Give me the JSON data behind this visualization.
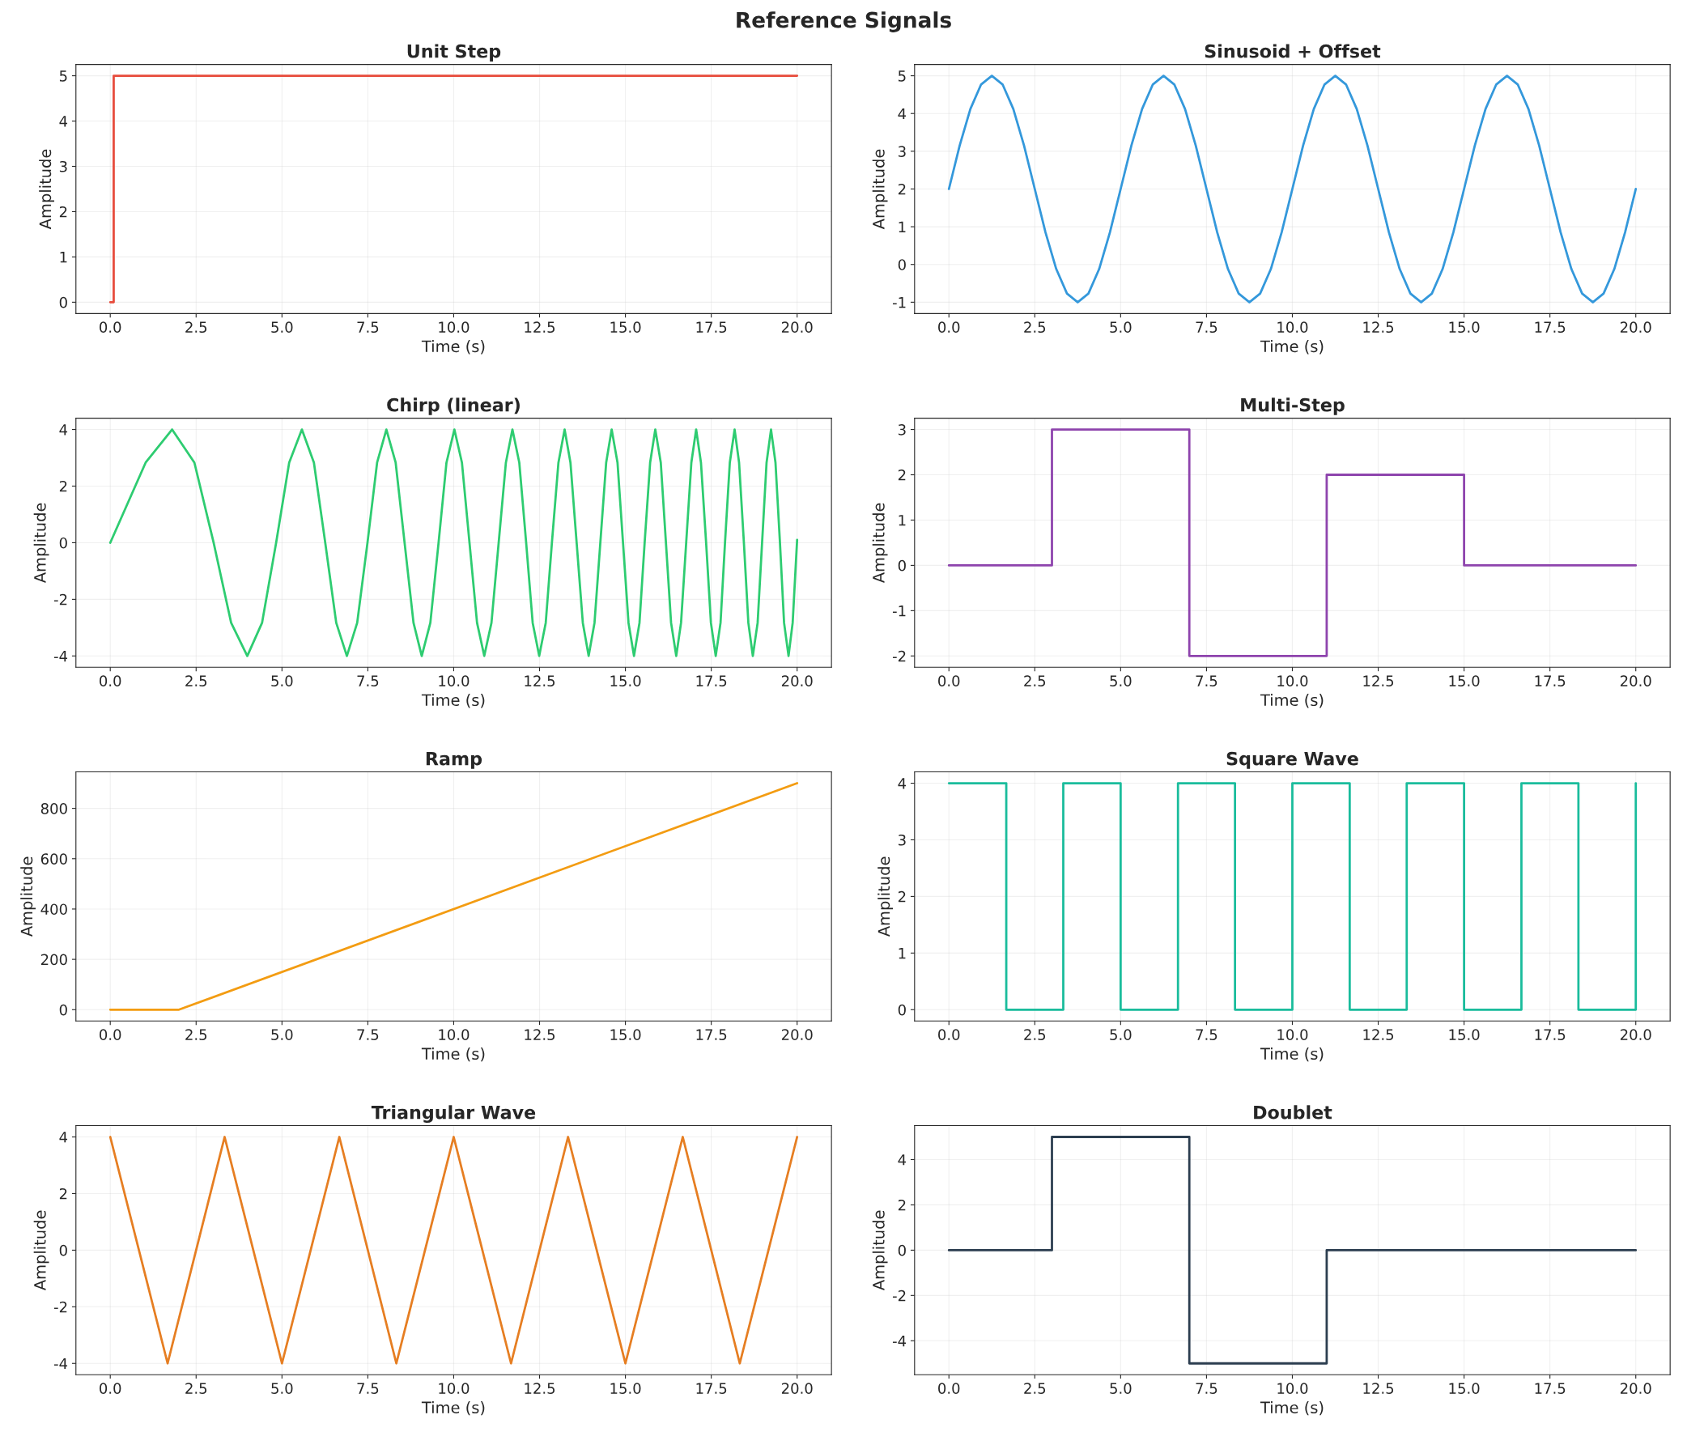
{
  "chart_data": [
    {
      "type": "step",
      "title": "Unit Step",
      "xlabel": "Time (s)",
      "ylabel": "Amplitude",
      "annotations": [
        "Reference Signals"
      ],
      "color": "#e74c3c",
      "x": [
        0,
        0.1,
        20
      ],
      "values": [
        0,
        5,
        5
      ],
      "xlim": [
        -1,
        21
      ],
      "ylim": [
        -0.25,
        5.25
      ],
      "xticks": [
        {
          "value": 0,
          "label": "0.0"
        },
        {
          "value": 2.5,
          "label": "2.5"
        },
        {
          "value": 5,
          "label": "5.0"
        },
        {
          "value": 7.5,
          "label": "7.5"
        },
        {
          "value": 10,
          "label": "10.0"
        },
        {
          "value": 12.5,
          "label": "12.5"
        },
        {
          "value": 15,
          "label": "15.0"
        },
        {
          "value": 17.5,
          "label": "17.5"
        },
        {
          "value": 20,
          "label": "20.0"
        }
      ],
      "yticks": [
        0,
        1,
        2,
        3,
        4,
        5
      ],
      "grid": true
    },
    {
      "type": "line",
      "title": "Sinusoid + Offset",
      "xlabel": "Time (s)",
      "ylabel": "Amplitude",
      "color": "#3498db",
      "x": [
        0,
        0.3125,
        0.625,
        0.9375,
        1.25,
        1.5625,
        1.875,
        2.1875,
        2.5,
        2.8125,
        3.125,
        3.4375,
        3.75,
        4.0625,
        4.375,
        4.6875,
        5,
        5.3125,
        5.625,
        5.9375,
        6.25,
        6.5625,
        6.875,
        7.1875,
        7.5,
        7.8125,
        8.125,
        8.4375,
        8.75,
        9.0625,
        9.375,
        9.6875,
        10,
        10.3125,
        10.625,
        10.9375,
        11.25,
        11.5625,
        11.875,
        12.1875,
        12.5,
        12.8125,
        13.125,
        13.4375,
        13.75,
        14.0625,
        14.375,
        14.6875,
        15,
        15.3125,
        15.625,
        15.9375,
        16.25,
        16.5625,
        16.875,
        17.1875,
        17.5,
        17.8125,
        18.125,
        18.4375,
        18.75,
        19.0625,
        19.375,
        19.6875,
        20
      ],
      "values": [
        2,
        3.15,
        4.12,
        4.77,
        5,
        4.77,
        4.12,
        3.15,
        2,
        0.85,
        -0.12,
        -0.77,
        -1,
        -0.77,
        -0.12,
        0.85,
        2,
        3.15,
        4.12,
        4.77,
        5,
        4.77,
        4.12,
        3.15,
        2,
        0.85,
        -0.12,
        -0.77,
        -1,
        -0.77,
        -0.12,
        0.85,
        2,
        3.15,
        4.12,
        4.77,
        5,
        4.77,
        4.12,
        3.15,
        2,
        0.85,
        -0.12,
        -0.77,
        -1,
        -0.77,
        -0.12,
        0.85,
        2,
        3.15,
        4.12,
        4.77,
        5,
        4.77,
        4.12,
        3.15,
        2,
        0.85,
        -0.12,
        -0.77,
        -1,
        -0.77,
        -0.12,
        0.85,
        2
      ],
      "xlim": [
        -1,
        21
      ],
      "ylim": [
        -1.3,
        5.3
      ],
      "xticks": [
        {
          "value": 0,
          "label": "0.0"
        },
        {
          "value": 2.5,
          "label": "2.5"
        },
        {
          "value": 5,
          "label": "5.0"
        },
        {
          "value": 7.5,
          "label": "7.5"
        },
        {
          "value": 10,
          "label": "10.0"
        },
        {
          "value": 12.5,
          "label": "12.5"
        },
        {
          "value": 15,
          "label": "15.0"
        },
        {
          "value": 17.5,
          "label": "17.5"
        },
        {
          "value": 20,
          "label": "20.0"
        }
      ],
      "yticks": [
        -1,
        0,
        1,
        2,
        3,
        4,
        5
      ],
      "grid": true
    },
    {
      "type": "line",
      "title": "Chirp (linear)",
      "xlabel": "Time (s)",
      "ylabel": "Amplitude",
      "color": "#2ecc71",
      "x": [
        0,
        1.03,
        1.8,
        2.45,
        3.01,
        3.52,
        3.99,
        4.42,
        4.83,
        5.21,
        5.58,
        5.93,
        6.26,
        6.58,
        6.89,
        7.19,
        7.49,
        7.77,
        8.04,
        8.31,
        8.57,
        8.83,
        9.07,
        9.32,
        9.56,
        9.79,
        10.02,
        10.24,
        10.46,
        10.68,
        10.89,
        11.1,
        11.31,
        11.52,
        11.71,
        11.91,
        12.11,
        12.3,
        12.49,
        12.68,
        12.86,
        13.05,
        13.23,
        13.4,
        13.58,
        13.76,
        13.93,
        14.1,
        14.27,
        14.44,
        14.6,
        14.77,
        14.93,
        15.09,
        15.25,
        15.41,
        15.56,
        15.72,
        15.87,
        16.03,
        16.18,
        16.33,
        16.48,
        16.62,
        16.77,
        16.92,
        17.06,
        17.2,
        17.35,
        17.49,
        17.63,
        17.77,
        17.9,
        18.04,
        18.18,
        18.31,
        18.45,
        18.58,
        18.71,
        18.85,
        18.98,
        19.11,
        19.24,
        19.37,
        19.5,
        19.62,
        19.75,
        19.87,
        20.0
      ],
      "values": [
        0,
        2.83,
        4,
        2.83,
        0,
        -2.83,
        -4,
        -2.83,
        0,
        2.83,
        4,
        2.83,
        0,
        -2.83,
        -4,
        -2.83,
        0,
        2.83,
        4,
        2.83,
        0,
        -2.83,
        -4,
        -2.83,
        0,
        2.83,
        4,
        2.83,
        0,
        -2.83,
        -4,
        -2.83,
        0,
        2.83,
        4,
        2.83,
        0,
        -2.83,
        -4,
        -2.83,
        0,
        2.83,
        4,
        2.83,
        0,
        -2.83,
        -4,
        -2.83,
        0,
        2.83,
        4,
        2.83,
        0,
        -2.83,
        -4,
        -2.83,
        0,
        2.83,
        4,
        2.83,
        0,
        -2.83,
        -4,
        -2.83,
        0,
        2.83,
        4,
        2.83,
        0,
        -2.83,
        -4,
        -2.83,
        0,
        2.83,
        4,
        2.83,
        0,
        -2.83,
        -4,
        -2.83,
        0,
        2.83,
        4,
        2.83,
        0,
        -2.83,
        -4,
        -2.83,
        0.1
      ],
      "xlim": [
        -1,
        21
      ],
      "ylim": [
        -4.4,
        4.4
      ],
      "xticks": [
        {
          "value": 0,
          "label": "0.0"
        },
        {
          "value": 2.5,
          "label": "2.5"
        },
        {
          "value": 5,
          "label": "5.0"
        },
        {
          "value": 7.5,
          "label": "7.5"
        },
        {
          "value": 10,
          "label": "10.0"
        },
        {
          "value": 12.5,
          "label": "12.5"
        },
        {
          "value": 15,
          "label": "15.0"
        },
        {
          "value": 17.5,
          "label": "17.5"
        },
        {
          "value": 20,
          "label": "20.0"
        }
      ],
      "yticks": [
        -4,
        -2,
        0,
        2,
        4
      ],
      "grid": true
    },
    {
      "type": "step",
      "title": "Multi-Step",
      "xlabel": "Time (s)",
      "ylabel": "Amplitude",
      "color": "#8e44ad",
      "x": [
        0,
        3,
        7,
        11,
        15,
        20
      ],
      "values": [
        0,
        3,
        -2,
        2,
        0,
        0
      ],
      "xlim": [
        -1,
        21
      ],
      "ylim": [
        -2.25,
        3.25
      ],
      "xticks": [
        {
          "value": 0,
          "label": "0.0"
        },
        {
          "value": 2.5,
          "label": "2.5"
        },
        {
          "value": 5,
          "label": "5.0"
        },
        {
          "value": 7.5,
          "label": "7.5"
        },
        {
          "value": 10,
          "label": "10.0"
        },
        {
          "value": 12.5,
          "label": "12.5"
        },
        {
          "value": 15,
          "label": "15.0"
        },
        {
          "value": 17.5,
          "label": "17.5"
        },
        {
          "value": 20,
          "label": "20.0"
        }
      ],
      "yticks": [
        -2,
        -1,
        0,
        1,
        2,
        3
      ],
      "grid": true
    },
    {
      "type": "line",
      "title": "Ramp",
      "xlabel": "Time (s)",
      "ylabel": "Amplitude",
      "color": "#f39c12",
      "x": [
        0,
        2,
        20
      ],
      "values": [
        0,
        0,
        900
      ],
      "xlim": [
        -1,
        21
      ],
      "ylim": [
        -45,
        945
      ],
      "xticks": [
        {
          "value": 0,
          "label": "0.0"
        },
        {
          "value": 2.5,
          "label": "2.5"
        },
        {
          "value": 5,
          "label": "5.0"
        },
        {
          "value": 7.5,
          "label": "7.5"
        },
        {
          "value": 10,
          "label": "10.0"
        },
        {
          "value": 12.5,
          "label": "12.5"
        },
        {
          "value": 15,
          "label": "15.0"
        },
        {
          "value": 17.5,
          "label": "17.5"
        },
        {
          "value": 20,
          "label": "20.0"
        }
      ],
      "yticks": [
        0,
        200,
        400,
        600,
        800
      ],
      "grid": true
    },
    {
      "type": "step",
      "title": "Square Wave",
      "xlabel": "Time (s)",
      "ylabel": "Amplitude",
      "color": "#1abc9c",
      "x": [
        0,
        1.67,
        3.33,
        5,
        6.67,
        8.33,
        10,
        11.67,
        13.33,
        15,
        16.67,
        18.33,
        20
      ],
      "values": [
        4,
        0,
        4,
        0,
        4,
        0,
        4,
        0,
        4,
        0,
        4,
        0,
        4
      ],
      "xlim": [
        -1,
        21
      ],
      "ylim": [
        -0.2,
        4.2
      ],
      "xticks": [
        {
          "value": 0,
          "label": "0.0"
        },
        {
          "value": 2.5,
          "label": "2.5"
        },
        {
          "value": 5,
          "label": "5.0"
        },
        {
          "value": 7.5,
          "label": "7.5"
        },
        {
          "value": 10,
          "label": "10.0"
        },
        {
          "value": 12.5,
          "label": "12.5"
        },
        {
          "value": 15,
          "label": "15.0"
        },
        {
          "value": 17.5,
          "label": "17.5"
        },
        {
          "value": 20,
          "label": "20.0"
        }
      ],
      "yticks": [
        0,
        1,
        2,
        3,
        4
      ],
      "grid": true
    },
    {
      "type": "line",
      "title": "Triangular Wave",
      "xlabel": "Time (s)",
      "ylabel": "Amplitude",
      "color": "#e67e22",
      "x": [
        0,
        1.67,
        3.33,
        5,
        6.67,
        8.33,
        10,
        11.67,
        13.33,
        15,
        16.67,
        18.33,
        20
      ],
      "values": [
        4,
        -4,
        4,
        -4,
        4,
        -4,
        4,
        -4,
        4,
        -4,
        4,
        -4,
        4
      ],
      "xlim": [
        -1,
        21
      ],
      "ylim": [
        -4.4,
        4.4
      ],
      "xticks": [
        {
          "value": 0,
          "label": "0.0"
        },
        {
          "value": 2.5,
          "label": "2.5"
        },
        {
          "value": 5,
          "label": "5.0"
        },
        {
          "value": 7.5,
          "label": "7.5"
        },
        {
          "value": 10,
          "label": "10.0"
        },
        {
          "value": 12.5,
          "label": "12.5"
        },
        {
          "value": 15,
          "label": "15.0"
        },
        {
          "value": 17.5,
          "label": "17.5"
        },
        {
          "value": 20,
          "label": "20.0"
        }
      ],
      "yticks": [
        -4,
        -2,
        0,
        2,
        4
      ],
      "grid": true
    },
    {
      "type": "step",
      "title": "Doublet",
      "xlabel": "Time (s)",
      "ylabel": "Amplitude",
      "color": "#2c3e50",
      "x": [
        0,
        3,
        7,
        11,
        20
      ],
      "values": [
        0,
        5,
        -5,
        0,
        0
      ],
      "xlim": [
        -1,
        21
      ],
      "ylim": [
        -5.5,
        5.5
      ],
      "xticks": [
        {
          "value": 0,
          "label": "0.0"
        },
        {
          "value": 2.5,
          "label": "2.5"
        },
        {
          "value": 5,
          "label": "5.0"
        },
        {
          "value": 7.5,
          "label": "7.5"
        },
        {
          "value": 10,
          "label": "10.0"
        },
        {
          "value": 12.5,
          "label": "12.5"
        },
        {
          "value": 15,
          "label": "15.0"
        },
        {
          "value": 17.5,
          "label": "17.5"
        },
        {
          "value": 20,
          "label": "20.0"
        }
      ],
      "yticks": [
        -4,
        -2,
        0,
        2,
        4
      ],
      "grid": true
    }
  ]
}
